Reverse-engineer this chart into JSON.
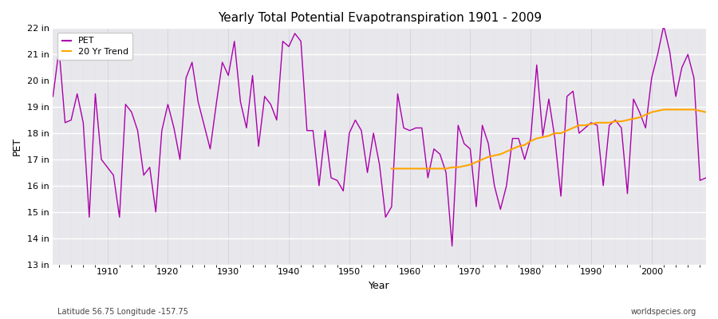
{
  "title": "Yearly Total Potential Evapotranspiration 1901 - 2009",
  "xlabel": "Year",
  "ylabel": "PET",
  "subtitle_left": "Latitude 56.75 Longitude -157.75",
  "subtitle_right": "worldspecies.org",
  "pet_color": "#aa00aa",
  "trend_color": "#ffa500",
  "fig_bg": "#ffffff",
  "plot_bg": "#e8e8ec",
  "ylim": [
    13,
    22
  ],
  "yticks": [
    13,
    14,
    15,
    16,
    17,
    18,
    19,
    20,
    21,
    22
  ],
  "ytick_labels": [
    "13 in",
    "14 in",
    "15 in",
    "16 in",
    "17 in",
    "18 in",
    "19 in",
    "20 in",
    "21 in",
    "22 in"
  ],
  "xlim": [
    1901,
    2009
  ],
  "xticks": [
    1910,
    1920,
    1930,
    1940,
    1950,
    1960,
    1970,
    1980,
    1990,
    2000
  ],
  "years": [
    1901,
    1902,
    1903,
    1904,
    1905,
    1906,
    1907,
    1908,
    1909,
    1910,
    1911,
    1912,
    1913,
    1914,
    1915,
    1916,
    1917,
    1918,
    1919,
    1920,
    1921,
    1922,
    1923,
    1924,
    1925,
    1926,
    1927,
    1928,
    1929,
    1930,
    1931,
    1932,
    1933,
    1934,
    1935,
    1936,
    1937,
    1938,
    1939,
    1940,
    1941,
    1942,
    1943,
    1944,
    1945,
    1946,
    1947,
    1948,
    1949,
    1950,
    1951,
    1952,
    1953,
    1954,
    1955,
    1956,
    1957,
    1958,
    1959,
    1960,
    1961,
    1962,
    1963,
    1964,
    1965,
    1966,
    1967,
    1968,
    1969,
    1970,
    1971,
    1972,
    1973,
    1974,
    1975,
    1976,
    1977,
    1978,
    1979,
    1980,
    1981,
    1982,
    1983,
    1984,
    1985,
    1986,
    1987,
    1988,
    1989,
    1990,
    1991,
    1992,
    1993,
    1994,
    1995,
    1996,
    1997,
    1998,
    1999,
    2000,
    2001,
    2002,
    2003,
    2004,
    2005,
    2006,
    2007,
    2008,
    2009
  ],
  "pet_values": [
    19.4,
    21.2,
    18.4,
    18.5,
    19.5,
    18.4,
    14.8,
    19.5,
    17.0,
    16.7,
    16.4,
    14.8,
    19.1,
    18.8,
    18.1,
    16.4,
    16.7,
    15.0,
    18.1,
    19.1,
    18.2,
    17.0,
    20.1,
    20.7,
    19.2,
    18.3,
    17.4,
    19.1,
    20.7,
    20.2,
    21.5,
    19.2,
    18.2,
    20.2,
    17.5,
    19.4,
    19.1,
    18.5,
    21.5,
    21.3,
    21.8,
    21.5,
    18.1,
    18.1,
    16.0,
    18.1,
    16.3,
    16.2,
    15.8,
    18.0,
    18.5,
    18.1,
    16.5,
    18.0,
    16.8,
    14.8,
    15.2,
    19.5,
    18.2,
    18.1,
    18.2,
    18.2,
    16.3,
    17.4,
    17.2,
    16.5,
    13.7,
    18.3,
    17.6,
    17.4,
    15.2,
    18.3,
    17.6,
    16.0,
    15.1,
    16.0,
    17.8,
    17.8,
    17.0,
    17.8,
    20.6,
    17.9,
    19.3,
    17.8,
    15.6,
    19.4,
    19.6,
    18.0,
    18.2,
    18.4,
    18.3,
    16.0,
    18.3,
    18.5,
    18.2,
    15.7,
    19.3,
    18.8,
    18.2,
    20.1,
    21.0,
    22.1,
    21.1,
    19.4,
    20.5,
    21.0,
    20.1,
    16.2,
    16.3
  ],
  "trend_years": [
    1957,
    1958,
    1959,
    1960,
    1961,
    1962,
    1963,
    1964,
    1965,
    1966,
    1967,
    1968,
    1969,
    1970,
    1971,
    1972,
    1973,
    1974,
    1975,
    1976,
    1977,
    1978,
    1979,
    1980,
    1981,
    1982,
    1983,
    1984,
    1985,
    1986,
    1987,
    1988,
    1989,
    1990,
    1991,
    1992,
    1993,
    1994,
    1995,
    1996,
    1997,
    1998,
    1999,
    2000,
    2001,
    2002,
    2003,
    2004,
    2005,
    2006,
    2007,
    2008,
    2009
  ],
  "trend_values": [
    16.65,
    16.65,
    16.65,
    16.65,
    16.65,
    16.65,
    16.65,
    16.65,
    16.65,
    16.65,
    16.7,
    16.7,
    16.75,
    16.8,
    16.9,
    17.0,
    17.1,
    17.15,
    17.2,
    17.3,
    17.4,
    17.5,
    17.55,
    17.7,
    17.8,
    17.85,
    17.9,
    18.0,
    18.0,
    18.1,
    18.2,
    18.3,
    18.3,
    18.35,
    18.4,
    18.4,
    18.4,
    18.45,
    18.45,
    18.5,
    18.55,
    18.6,
    18.7,
    18.8,
    18.85,
    18.9,
    18.9,
    18.9,
    18.9,
    18.9,
    18.9,
    18.85,
    18.8
  ]
}
